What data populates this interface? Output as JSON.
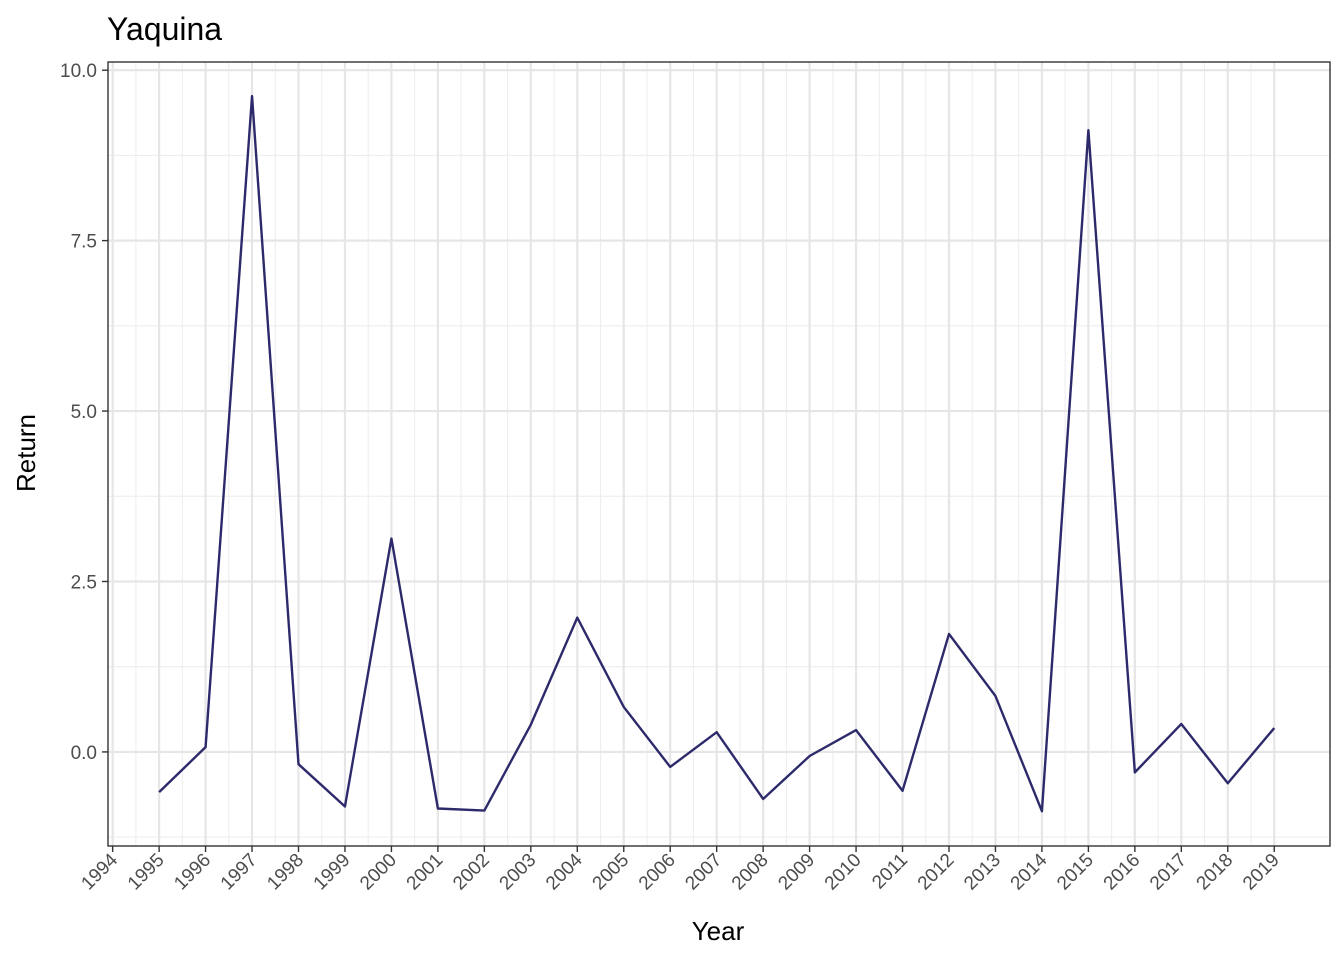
{
  "chart_data": {
    "type": "line",
    "title": "Yaquina",
    "xlabel": "Year",
    "ylabel": "Return",
    "x": [
      1995,
      1996,
      1997,
      1998,
      1999,
      2000,
      2001,
      2002,
      2003,
      2004,
      2005,
      2006,
      2007,
      2008,
      2009,
      2010,
      2011,
      2012,
      2013,
      2014,
      2015,
      2016,
      2017,
      2018,
      2019
    ],
    "series": [
      {
        "values": [
          -0.59,
          0.07,
          9.62,
          -0.18,
          -0.8,
          3.13,
          -0.83,
          -0.86,
          0.4,
          1.97,
          0.66,
          -0.22,
          0.29,
          -0.69,
          -0.06,
          0.32,
          -0.57,
          1.73,
          0.82,
          -0.87,
          9.12,
          -0.3,
          0.41,
          -0.46,
          0.35
        ],
        "color": "#2d2a6b"
      }
    ],
    "x_ticks": [
      "1994",
      "1995",
      "1996",
      "1997",
      "1998",
      "1999",
      "2000",
      "2001",
      "2002",
      "2003",
      "2004",
      "2005",
      "2006",
      "2007",
      "2008",
      "2009",
      "2010",
      "2011",
      "2012",
      "2013",
      "2014",
      "2015",
      "2016",
      "2017",
      "2018",
      "2019"
    ],
    "y_ticks": [
      "0.0",
      "2.5",
      "5.0",
      "7.5",
      "10.0"
    ],
    "xlim": [
      1993.9,
      2020.2
    ],
    "ylim": [
      -1.38,
      10.12
    ],
    "grid": true,
    "legend": "none"
  }
}
